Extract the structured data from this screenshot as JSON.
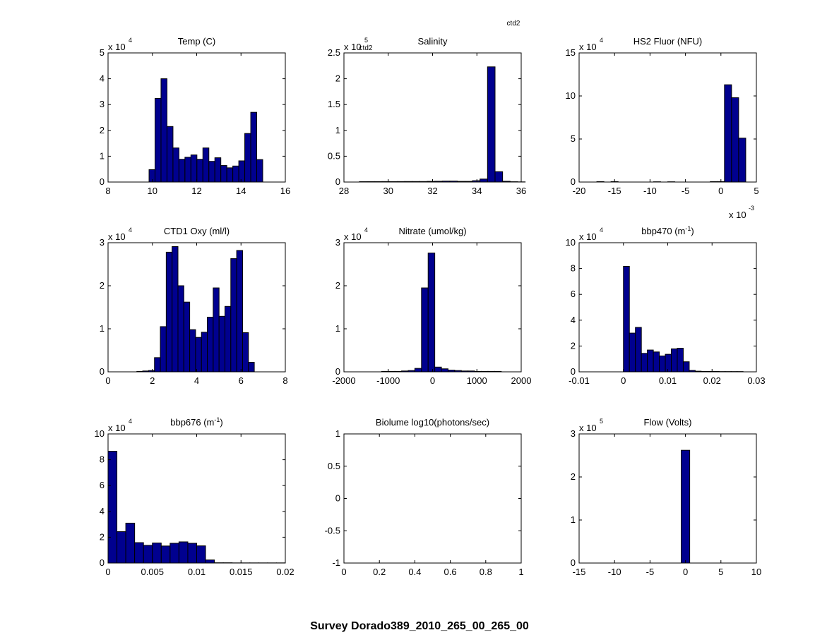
{
  "figure_title": "Survey Dorado389_2010_265_00_265_00",
  "overlay_text": [
    "ctd2",
    "ctd2"
  ],
  "colors": {
    "bar": "#00008f",
    "axes": "#000000",
    "background": "#ffffff"
  },
  "chart_data": [
    {
      "type": "bar",
      "title": "Temp (C)",
      "xlim": [
        8,
        16
      ],
      "ylim": [
        0,
        50000
      ],
      "xticks": [
        8,
        10,
        12,
        14,
        16
      ],
      "xtick_labels": [
        "8",
        "10",
        "12",
        "14",
        "16"
      ],
      "yticks": [
        0,
        10000,
        20000,
        30000,
        40000,
        50000
      ],
      "ytick_labels": [
        "0",
        "1",
        "2",
        "3",
        "4",
        "5"
      ],
      "exponent_base": "x 10",
      "exponent_power": "4",
      "x_exponent_base": null,
      "x_exponent_power": null,
      "bin_start": 9.85,
      "bin_width": 0.27,
      "values": [
        4800,
        32400,
        40000,
        21500,
        13200,
        8800,
        9600,
        10500,
        8800,
        13200,
        8000,
        9400,
        6400,
        5500,
        6200,
        8200,
        18800,
        27000,
        8700,
        0,
        0
      ]
    },
    {
      "type": "bar",
      "title": "Salinity",
      "xlim": [
        28,
        36
      ],
      "ylim": [
        0,
        250000
      ],
      "xticks": [
        28,
        30,
        32,
        34,
        36
      ],
      "xtick_labels": [
        "28",
        "30",
        "32",
        "34",
        "36"
      ],
      "yticks": [
        0,
        50000,
        100000,
        150000,
        200000,
        250000
      ],
      "ytick_labels": [
        "0",
        "0.5",
        "1",
        "1.5",
        "2",
        "2.5"
      ],
      "exponent_base": "x 10",
      "exponent_power": "5",
      "x_exponent_base": null,
      "x_exponent_power": null,
      "bin_start": 28.7,
      "bin_width": 0.34,
      "values": [
        700,
        800,
        800,
        900,
        800,
        900,
        1000,
        1000,
        1000,
        1300,
        1500,
        1900,
        1900,
        1300,
        1300,
        2600,
        5800,
        223000,
        20000,
        1500,
        600,
        300
      ]
    },
    {
      "type": "bar",
      "title": "HS2 Fluor (NFU)",
      "xlim": [
        -20,
        5
      ],
      "ylim": [
        0,
        150000
      ],
      "xticks": [
        -20,
        -15,
        -10,
        -5,
        0,
        5
      ],
      "xtick_labels": [
        "-20",
        "-15",
        "-10",
        "-5",
        "0",
        "5"
      ],
      "yticks": [
        0,
        50000,
        100000,
        150000
      ],
      "ytick_labels": [
        "0",
        "5",
        "10",
        "15"
      ],
      "exponent_base": "x 10",
      "exponent_power": "4",
      "x_exponent_base": "x 10",
      "x_exponent_power": "-3",
      "bin_start": -17.5,
      "bin_width": 1.0,
      "values": [
        500,
        0,
        500,
        0,
        0,
        0,
        0,
        0,
        300,
        0,
        300,
        0,
        0,
        0,
        0,
        0,
        500,
        500,
        113000,
        98000,
        51000
      ]
    },
    {
      "type": "bar",
      "title": "CTD1 Oxy (ml/l)",
      "xlim": [
        0,
        8
      ],
      "ylim": [
        0,
        30000
      ],
      "xticks": [
        0,
        2,
        4,
        6,
        8
      ],
      "xtick_labels": [
        "0",
        "2",
        "4",
        "6",
        "8"
      ],
      "yticks": [
        0,
        10000,
        20000,
        30000
      ],
      "ytick_labels": [
        "0",
        "1",
        "2",
        "3"
      ],
      "exponent_base": "x 10",
      "exponent_power": "4",
      "x_exponent_base": null,
      "x_exponent_power": null,
      "bin_start": 1.3,
      "bin_width": 0.265,
      "values": [
        100,
        200,
        300,
        3300,
        10500,
        27800,
        29100,
        20000,
        16200,
        9800,
        8000,
        9200,
        12700,
        19500,
        12900,
        15200,
        26300,
        28200,
        9100,
        2200
      ]
    },
    {
      "type": "bar",
      "title": "Nitrate (umol/kg)",
      "xlim": [
        -2000,
        2000
      ],
      "ylim": [
        0,
        30000
      ],
      "xticks": [
        -2000,
        -1000,
        0,
        1000,
        2000
      ],
      "xtick_labels": [
        "-2000",
        "-1000",
        "0",
        "1000",
        "2000"
      ],
      "yticks": [
        0,
        10000,
        20000,
        30000
      ],
      "ytick_labels": [
        "0",
        "1",
        "2",
        "3"
      ],
      "exponent_base": "x 10",
      "exponent_power": "4",
      "x_exponent_base": null,
      "x_exponent_power": null,
      "bin_start": -1600,
      "bin_width": 150,
      "values": [
        0,
        0,
        0,
        100,
        100,
        100,
        200,
        300,
        800,
        19500,
        27600,
        1100,
        700,
        400,
        300,
        200,
        200,
        100,
        100,
        100,
        100,
        0
      ]
    },
    {
      "type": "bar",
      "title": "bbp470 (m",
      "title_superscript": "-1",
      "title_suffix": ")",
      "xlim": [
        -0.01,
        0.03
      ],
      "ylim": [
        0,
        100000
      ],
      "xticks": [
        -0.01,
        0,
        0.01,
        0.02,
        0.03
      ],
      "xtick_labels": [
        "-0.01",
        "0",
        "0.01",
        "0.02",
        "0.03"
      ],
      "yticks": [
        0,
        20000,
        40000,
        60000,
        80000,
        100000
      ],
      "ytick_labels": [
        "0",
        "2",
        "4",
        "6",
        "8",
        "10"
      ],
      "exponent_base": "x 10",
      "exponent_power": "4",
      "x_exponent_base": null,
      "x_exponent_power": null,
      "bin_start": 0.0,
      "bin_width": 0.00135,
      "values": [
        81700,
        30000,
        34400,
        14300,
        16900,
        15400,
        12300,
        13600,
        17800,
        18300,
        7800,
        1100,
        500,
        300,
        300,
        300,
        200,
        200,
        200,
        200
      ]
    },
    {
      "type": "bar",
      "title": "bbp676 (m",
      "title_superscript": "-1",
      "title_suffix": ")",
      "xlim": [
        0,
        0.02
      ],
      "ylim": [
        0,
        100000
      ],
      "xticks": [
        0,
        0.005,
        0.01,
        0.015,
        0.02
      ],
      "xtick_labels": [
        "0",
        "0.005",
        "0.01",
        "0.015",
        "0.02"
      ],
      "yticks": [
        0,
        20000,
        40000,
        60000,
        80000,
        100000
      ],
      "ytick_labels": [
        "0",
        "2",
        "4",
        "6",
        "8",
        "10"
      ],
      "exponent_base": "x 10",
      "exponent_power": "4",
      "x_exponent_base": null,
      "x_exponent_power": null,
      "bin_start": 0.0,
      "bin_width": 0.001,
      "values": [
        86600,
        24300,
        30900,
        15800,
        13700,
        15500,
        13200,
        15300,
        16400,
        15300,
        13300,
        2400,
        200,
        200,
        100,
        100,
        100,
        100,
        100,
        100
      ]
    },
    {
      "type": "bar",
      "title": "Biolume log10(photons/sec)",
      "xlim": [
        0,
        1
      ],
      "ylim": [
        -1,
        1
      ],
      "xticks": [
        0,
        0.2,
        0.4,
        0.6,
        0.8,
        1
      ],
      "xtick_labels": [
        "0",
        "0.2",
        "0.4",
        "0.6",
        "0.8",
        "1"
      ],
      "yticks": [
        -1,
        -0.5,
        0,
        0.5,
        1
      ],
      "ytick_labels": [
        "-1",
        "-0.5",
        "0",
        "0.5",
        "1"
      ],
      "exponent_base": null,
      "exponent_power": null,
      "x_exponent_base": null,
      "x_exponent_power": null,
      "bin_start": 0,
      "bin_width": 0.05,
      "values": []
    },
    {
      "type": "bar",
      "title": "Flow (Volts)",
      "xlim": [
        -15,
        10
      ],
      "ylim": [
        0,
        300000
      ],
      "xticks": [
        -15,
        -10,
        -5,
        0,
        5,
        10
      ],
      "xtick_labels": [
        "-15",
        "-10",
        "-5",
        "0",
        "5",
        "10"
      ],
      "yticks": [
        0,
        100000,
        200000,
        300000
      ],
      "ytick_labels": [
        "0",
        "1",
        "2",
        "3"
      ],
      "exponent_base": "x 10",
      "exponent_power": "5",
      "x_exponent_base": null,
      "x_exponent_power": null,
      "bin_start": -0.6,
      "bin_width": 1.2,
      "values": [
        262000
      ]
    }
  ]
}
